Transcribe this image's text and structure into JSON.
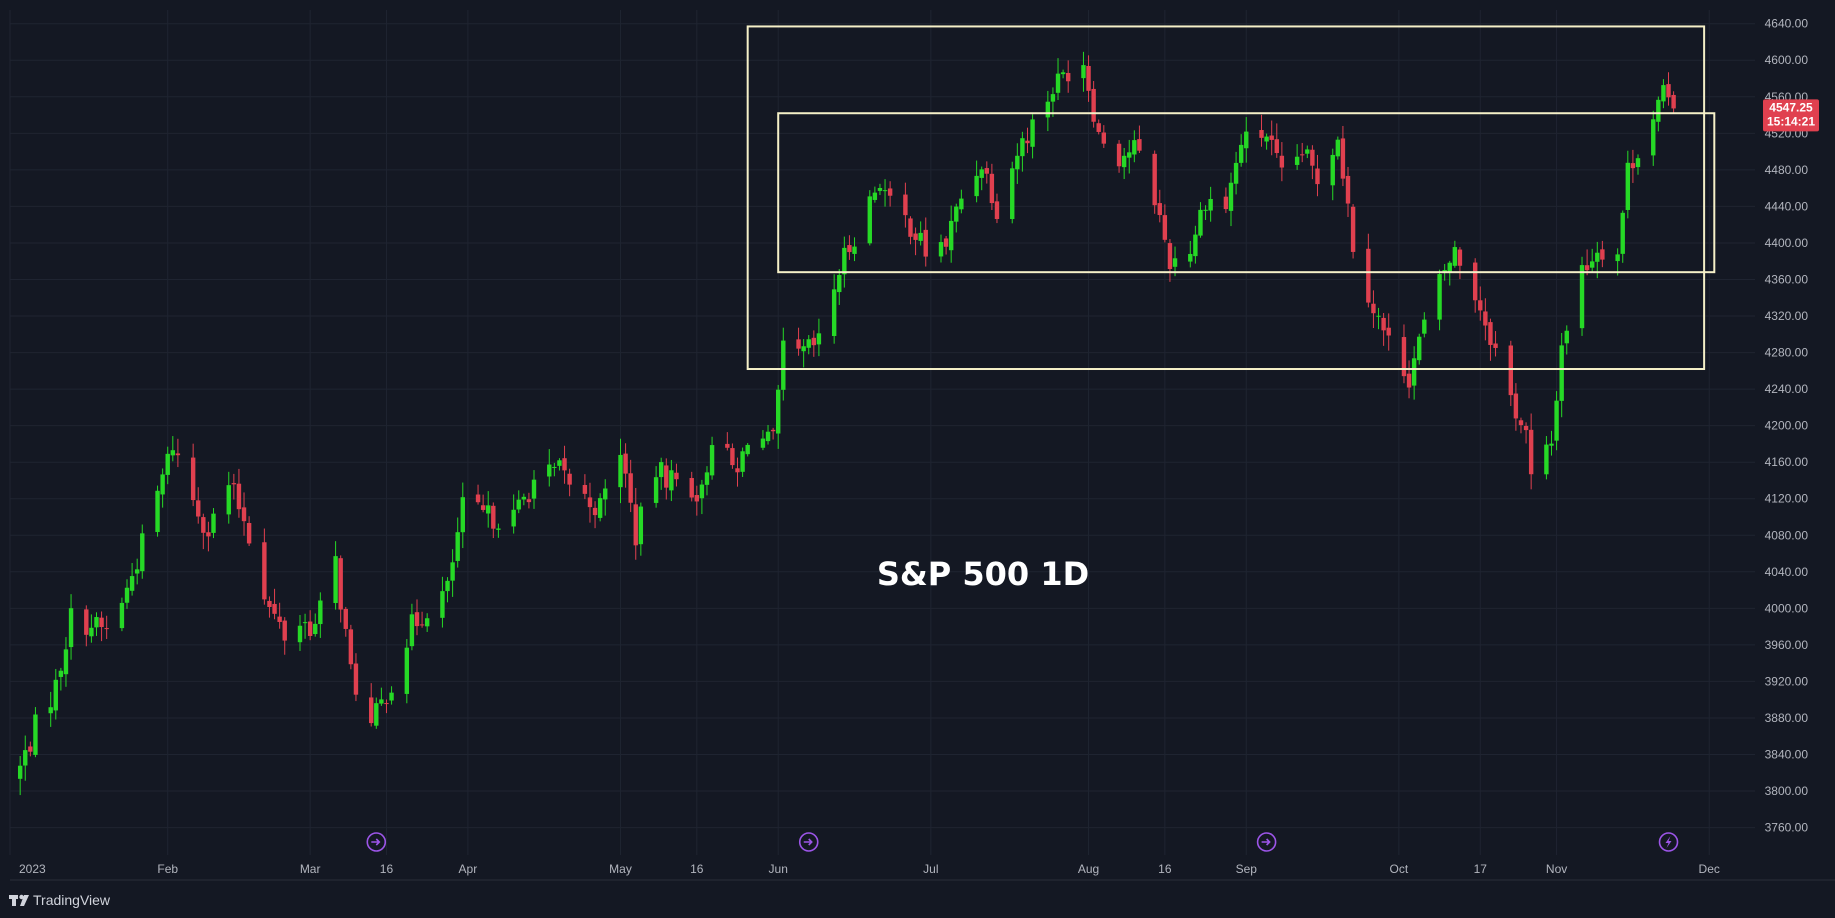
{
  "app": {
    "brand": "TradingView"
  },
  "colors": {
    "background": "#141823",
    "grid": "#1f2431",
    "up": "#26d926",
    "down": "#e0404f",
    "box": "#f5f0c8",
    "axis_text": "#b2b5be",
    "event_icon": "#9c55e8"
  },
  "event_icons": [
    {
      "name": "dividend-icon",
      "date": "2023-03-14"
    },
    {
      "name": "dividend-icon",
      "date": "2023-06-07"
    },
    {
      "name": "dividend-icon",
      "date": "2023-09-05"
    },
    {
      "name": "earnings-icon",
      "date": "2023-11-23"
    }
  ],
  "chart_data": {
    "type": "candlestick",
    "title": "S&P 500 1D",
    "ylim": [
      3730,
      4655
    ],
    "xlim": [
      "2023-01-01",
      "2023-12-10"
    ],
    "y_ticks": [
      3760,
      3800,
      3840,
      3880,
      3920,
      3960,
      4000,
      4040,
      4080,
      4120,
      4160,
      4200,
      4240,
      4280,
      4320,
      4360,
      4400,
      4440,
      4480,
      4520,
      4560,
      4600,
      4640
    ],
    "x_ticks": [
      {
        "date": "2023-01-01",
        "label": "2023"
      },
      {
        "date": "2023-02-01",
        "label": "Feb"
      },
      {
        "date": "2023-03-01",
        "label": "Mar"
      },
      {
        "date": "2023-03-16",
        "label": "16"
      },
      {
        "date": "2023-04-01",
        "label": "Apr"
      },
      {
        "date": "2023-05-01",
        "label": "May"
      },
      {
        "date": "2023-05-16",
        "label": "16"
      },
      {
        "date": "2023-06-01",
        "label": "Jun"
      },
      {
        "date": "2023-07-01",
        "label": "Jul"
      },
      {
        "date": "2023-08-01",
        "label": "Aug"
      },
      {
        "date": "2023-08-16",
        "label": "16"
      },
      {
        "date": "2023-09-01",
        "label": "Sep"
      },
      {
        "date": "2023-10-01",
        "label": "Oct"
      },
      {
        "date": "2023-10-17",
        "label": "17"
      },
      {
        "date": "2023-11-01",
        "label": "Nov"
      },
      {
        "date": "2023-12-01",
        "label": "Dec"
      }
    ],
    "last_price": {
      "value": 4547.25,
      "label": "4547.25",
      "countdown": "15:14:21"
    },
    "annotations": [
      {
        "type": "rectangle",
        "x1": "2023-05-26",
        "x2": "2023-11-30",
        "y1": 4262,
        "y2": 4637
      },
      {
        "type": "rectangle",
        "x1": "2023-06-01",
        "x2": "2023-12-02",
        "y1": 4368,
        "y2": 4542
      }
    ],
    "close_path": [
      [
        "2023-01-03",
        3825
      ],
      [
        "2023-01-06",
        3870
      ],
      [
        "2023-01-10",
        3915
      ],
      [
        "2023-01-13",
        3990
      ],
      [
        "2023-01-18",
        3980
      ],
      [
        "2023-01-20",
        3975
      ],
      [
        "2023-01-24",
        4020
      ],
      [
        "2023-01-27",
        4070
      ],
      [
        "2023-02-02",
        4180
      ],
      [
        "2023-02-06",
        4120
      ],
      [
        "2023-02-09",
        4085
      ],
      [
        "2023-02-13",
        4135
      ],
      [
        "2023-02-16",
        4100
      ],
      [
        "2023-02-21",
        4000
      ],
      [
        "2023-02-24",
        3970
      ],
      [
        "2023-02-27",
        3985
      ],
      [
        "2023-03-02",
        3980
      ],
      [
        "2023-03-06",
        4050
      ],
      [
        "2023-03-09",
        3930
      ],
      [
        "2023-03-13",
        3870
      ],
      [
        "2023-03-17",
        3920
      ],
      [
        "2023-03-21",
        3980
      ],
      [
        "2023-03-24",
        4000
      ],
      [
        "2023-03-28",
        4020
      ],
      [
        "2023-03-31",
        4110
      ],
      [
        "2023-04-05",
        4100
      ],
      [
        "2023-04-10",
        4100
      ],
      [
        "2023-04-14",
        4140
      ],
      [
        "2023-04-19",
        4150
      ],
      [
        "2023-04-24",
        4120
      ],
      [
        "2023-04-27",
        4110
      ],
      [
        "2023-05-01",
        4175
      ],
      [
        "2023-05-04",
        4080
      ],
      [
        "2023-05-08",
        4150
      ],
      [
        "2023-05-12",
        4140
      ],
      [
        "2023-05-17",
        4125
      ],
      [
        "2023-05-19",
        4190
      ],
      [
        "2023-05-24",
        4145
      ],
      [
        "2023-05-26",
        4190
      ],
      [
        "2023-05-31",
        4180
      ],
      [
        "2023-06-02",
        4280
      ],
      [
        "2023-06-05",
        4275
      ],
      [
        "2023-06-09",
        4290
      ],
      [
        "2023-06-13",
        4370
      ],
      [
        "2023-06-16",
        4410
      ],
      [
        "2023-06-21",
        4470
      ],
      [
        "2023-06-23",
        4440
      ],
      [
        "2023-06-27",
        4420
      ],
      [
        "2023-06-30",
        4390
      ],
      [
        "2023-07-04",
        4400
      ],
      [
        "2023-07-07",
        4450
      ],
      [
        "2023-07-11",
        4490
      ],
      [
        "2023-07-14",
        4440
      ],
      [
        "2023-07-18",
        4500
      ],
      [
        "2023-07-21",
        4530
      ],
      [
        "2023-07-25",
        4570
      ],
      [
        "2023-07-28",
        4590
      ],
      [
        "2023-07-31",
        4600
      ],
      [
        "2023-08-03",
        4520
      ],
      [
        "2023-08-07",
        4495
      ],
      [
        "2023-08-10",
        4505
      ],
      [
        "2023-08-14",
        4450
      ],
      [
        "2023-08-17",
        4380
      ],
      [
        "2023-08-21",
        4395
      ],
      [
        "2023-08-24",
        4450
      ],
      [
        "2023-08-28",
        4440
      ],
      [
        "2023-08-31",
        4510
      ],
      [
        "2023-09-05",
        4520
      ],
      [
        "2023-09-08",
        4470
      ],
      [
        "2023-09-12",
        4500
      ],
      [
        "2023-09-15",
        4470
      ],
      [
        "2023-09-19",
        4520
      ],
      [
        "2023-09-22",
        4400
      ],
      [
        "2023-09-26",
        4330
      ],
      [
        "2023-09-29",
        4290
      ],
      [
        "2023-10-03",
        4255
      ],
      [
        "2023-10-06",
        4310
      ],
      [
        "2023-10-10",
        4370
      ],
      [
        "2023-10-12",
        4390
      ],
      [
        "2023-10-16",
        4345
      ],
      [
        "2023-10-19",
        4300
      ],
      [
        "2023-10-23",
        4230
      ],
      [
        "2023-10-26",
        4190
      ],
      [
        "2023-10-27",
        4140
      ],
      [
        "2023-10-31",
        4180
      ],
      [
        "2023-11-02",
        4290
      ],
      [
        "2023-11-06",
        4370
      ],
      [
        "2023-11-09",
        4395
      ],
      [
        "2023-11-13",
        4390
      ],
      [
        "2023-11-15",
        4480
      ],
      [
        "2023-11-20",
        4540
      ],
      [
        "2023-11-22",
        4560
      ],
      [
        "2023-11-24",
        4547.25
      ]
    ]
  }
}
